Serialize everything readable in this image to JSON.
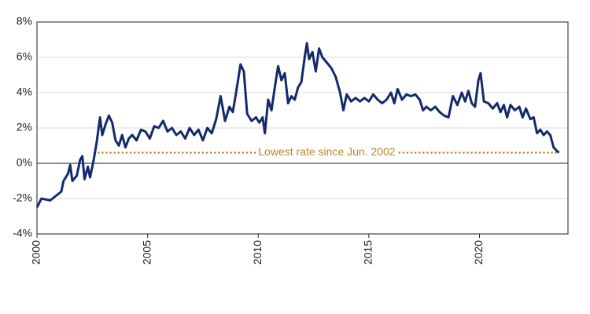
{
  "chart_data": {
    "type": "line",
    "x": [
      2000.0,
      2000.2,
      2000.6,
      2000.9,
      2001.1,
      2001.2,
      2001.4,
      2001.5,
      2001.6,
      2001.8,
      2001.95,
      2002.05,
      2002.15,
      2002.3,
      2002.4,
      2002.55,
      2002.7,
      2002.85,
      2002.95,
      2003.1,
      2003.25,
      2003.4,
      2003.55,
      2003.7,
      2003.85,
      2004.0,
      2004.15,
      2004.3,
      2004.5,
      2004.7,
      2004.9,
      2005.1,
      2005.3,
      2005.5,
      2005.7,
      2005.9,
      2006.1,
      2006.3,
      2006.5,
      2006.7,
      2006.9,
      2007.1,
      2007.3,
      2007.5,
      2007.7,
      2007.9,
      2008.1,
      2008.3,
      2008.5,
      2008.7,
      2008.85,
      2009.0,
      2009.2,
      2009.35,
      2009.5,
      2009.7,
      2009.9,
      2010.05,
      2010.2,
      2010.3,
      2010.45,
      2010.6,
      2010.75,
      2010.9,
      2011.05,
      2011.2,
      2011.35,
      2011.5,
      2011.65,
      2011.8,
      2011.95,
      2012.1,
      2012.2,
      2012.3,
      2012.45,
      2012.6,
      2012.75,
      2012.9,
      2013.1,
      2013.3,
      2013.5,
      2013.7,
      2013.85,
      2014.0,
      2014.2,
      2014.4,
      2014.6,
      2014.8,
      2015.0,
      2015.2,
      2015.4,
      2015.6,
      2015.8,
      2016.0,
      2016.15,
      2016.3,
      2016.5,
      2016.7,
      2016.9,
      2017.1,
      2017.3,
      2017.45,
      2017.6,
      2017.8,
      2018.0,
      2018.2,
      2018.4,
      2018.6,
      2018.8,
      2019.0,
      2019.2,
      2019.35,
      2019.5,
      2019.65,
      2019.8,
      2019.95,
      2020.05,
      2020.2,
      2020.4,
      2020.6,
      2020.8,
      2020.95,
      2021.1,
      2021.25,
      2021.4,
      2021.6,
      2021.8,
      2021.95,
      2022.1,
      2022.3,
      2022.45,
      2022.6,
      2022.75,
      2022.9,
      2023.05,
      2023.2,
      2023.35,
      2023.5,
      2023.6
    ],
    "series": [
      {
        "color": "#132a6b",
        "values": [
          -2.5,
          -2.0,
          -2.1,
          -1.8,
          -1.6,
          -1.0,
          -0.6,
          -0.1,
          -1.0,
          -0.7,
          0.2,
          0.4,
          -0.9,
          -0.2,
          -0.8,
          0.1,
          1.2,
          2.6,
          1.6,
          2.2,
          2.7,
          2.3,
          1.3,
          1.0,
          1.6,
          0.9,
          1.4,
          1.6,
          1.3,
          1.9,
          1.8,
          1.4,
          2.1,
          2.0,
          2.4,
          1.8,
          2.0,
          1.6,
          1.8,
          1.4,
          2.0,
          1.6,
          1.9,
          1.3,
          2.0,
          1.7,
          2.5,
          3.8,
          2.4,
          3.2,
          2.9,
          4.0,
          5.6,
          5.2,
          2.8,
          2.4,
          2.6,
          2.3,
          2.6,
          1.7,
          3.6,
          3.0,
          4.3,
          5.5,
          4.7,
          5.1,
          3.4,
          3.8,
          3.6,
          4.3,
          4.6,
          6.0,
          6.8,
          5.9,
          6.3,
          5.2,
          6.5,
          6.0,
          5.7,
          5.4,
          4.9,
          4.0,
          3.0,
          3.9,
          3.5,
          3.7,
          3.5,
          3.7,
          3.5,
          3.9,
          3.6,
          3.4,
          3.6,
          4.0,
          3.4,
          4.2,
          3.6,
          3.9,
          3.8,
          3.9,
          3.6,
          3.0,
          3.2,
          3.0,
          3.2,
          2.9,
          2.7,
          2.6,
          3.8,
          3.3,
          4.0,
          3.5,
          4.1,
          3.4,
          3.2,
          4.7,
          5.1,
          3.5,
          3.4,
          3.1,
          3.4,
          2.9,
          3.3,
          2.6,
          3.3,
          3.0,
          3.2,
          2.6,
          3.1,
          2.5,
          2.6,
          1.7,
          1.9,
          1.6,
          1.8,
          1.6,
          0.9,
          0.7,
          0.6
        ]
      }
    ],
    "xlim": [
      2000,
      2024
    ],
    "xticks": [
      2000,
      2005,
      2010,
      2015,
      2020
    ],
    "ylim": [
      -4,
      8
    ],
    "yticks": [
      {
        "value": -4,
        "label": "-4%"
      },
      {
        "value": -2,
        "label": "-2%"
      },
      {
        "value": 0,
        "label": "0%"
      },
      {
        "value": 2,
        "label": "2%"
      },
      {
        "value": 4,
        "label": "4%"
      },
      {
        "value": 6,
        "label": "6%"
      },
      {
        "value": 8,
        "label": "8%"
      }
    ],
    "grid": true,
    "reference_line": {
      "value": 0.6,
      "x": [
        2002.6,
        2023.6
      ],
      "color": "#b8862e",
      "label": "Lowest rate since Jun. 2002"
    }
  }
}
